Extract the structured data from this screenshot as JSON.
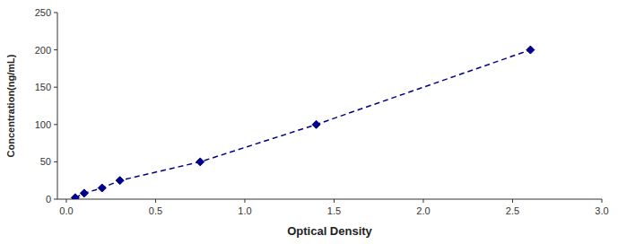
{
  "chart_data": {
    "type": "line",
    "xlabel": "Optical Density",
    "ylabel": "Concentration(ng/mL)",
    "x": [
      0.05,
      0.1,
      0.2,
      0.3,
      0.75,
      1.4,
      2.6
    ],
    "values": [
      2,
      8,
      15,
      25,
      50,
      100,
      200
    ],
    "color": "#00008B",
    "marker": "diamond",
    "line_style": "dashed",
    "xlim": [
      -0.05,
      3
    ],
    "ylim": [
      0,
      250
    ],
    "xticks": [
      {
        "value": 0,
        "label": "0.0"
      },
      0.5,
      {
        "value": 1,
        "label": "1.0"
      },
      1.5,
      {
        "value": 2,
        "label": "2.0"
      },
      2.5,
      {
        "value": 3,
        "label": "3.0"
      }
    ],
    "yticks": [
      0,
      50,
      100,
      150,
      200,
      250
    ]
  }
}
